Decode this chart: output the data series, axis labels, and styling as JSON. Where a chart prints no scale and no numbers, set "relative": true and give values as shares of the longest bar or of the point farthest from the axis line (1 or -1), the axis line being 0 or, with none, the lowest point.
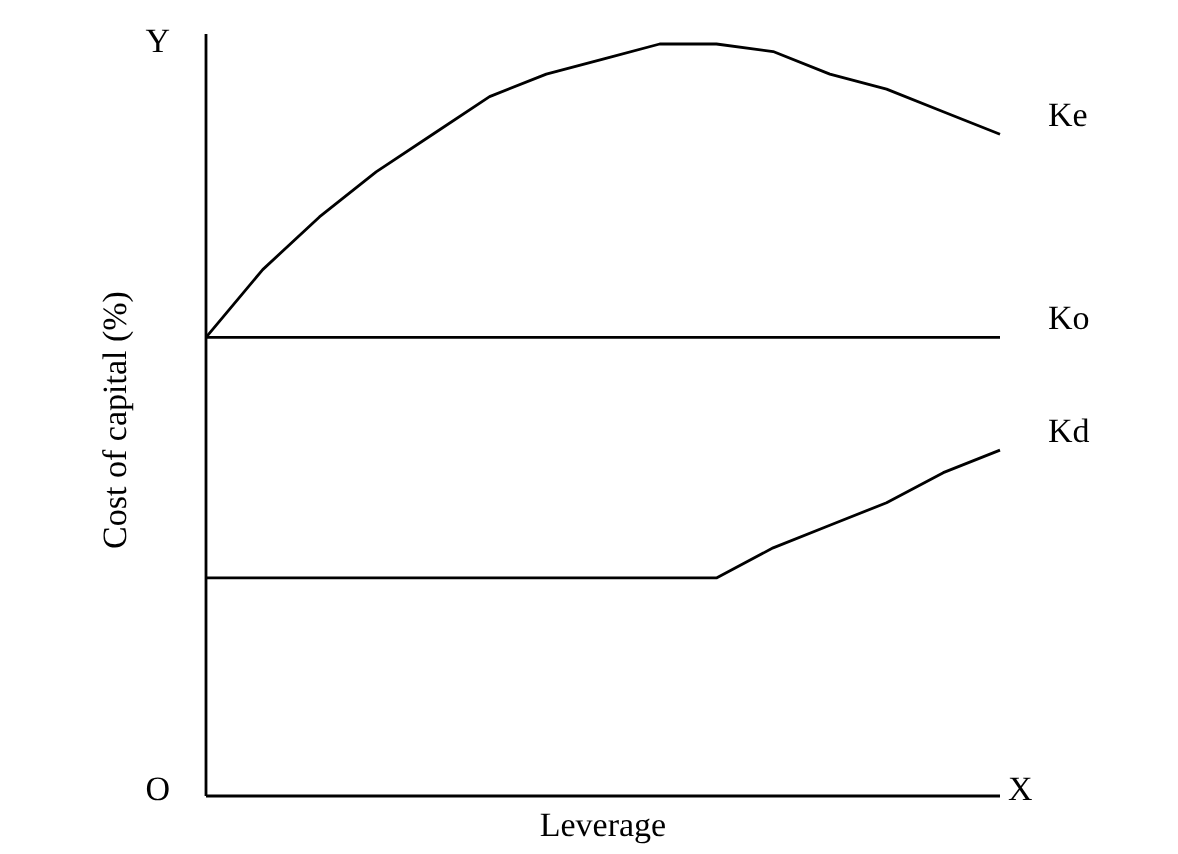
{
  "chart_data": {
    "type": "line",
    "relative": true,
    "xlabel": "Leverage",
    "ylabel": "Cost of capital (%)",
    "annotations": [
      "Y",
      "O",
      "X"
    ],
    "categories": [
      null,
      null,
      null,
      null,
      null,
      null,
      null,
      null,
      null,
      null,
      null,
      null,
      null,
      null,
      null
    ],
    "series": [
      {
        "name": "Ke",
        "color": "#000000",
        "values": [
          0.61,
          0.7,
          0.77,
          0.83,
          0.88,
          0.93,
          0.96,
          0.98,
          1,
          1,
          0.99,
          0.96,
          0.94,
          0.91,
          0.88
        ]
      },
      {
        "name": "Ko",
        "color": "#000000",
        "values": [
          0.61,
          0.61,
          0.61,
          0.61,
          0.61,
          0.61,
          0.61,
          0.61,
          0.61,
          0.61,
          0.61,
          0.61,
          0.61,
          0.61,
          0.61
        ]
      },
      {
        "name": "Kd",
        "color": "#000000",
        "values": [
          0.29,
          0.29,
          0.29,
          0.29,
          0.29,
          0.29,
          0.29,
          0.29,
          0.29,
          0.29,
          0.33,
          0.36,
          0.39,
          0.43,
          0.46
        ]
      }
    ]
  }
}
